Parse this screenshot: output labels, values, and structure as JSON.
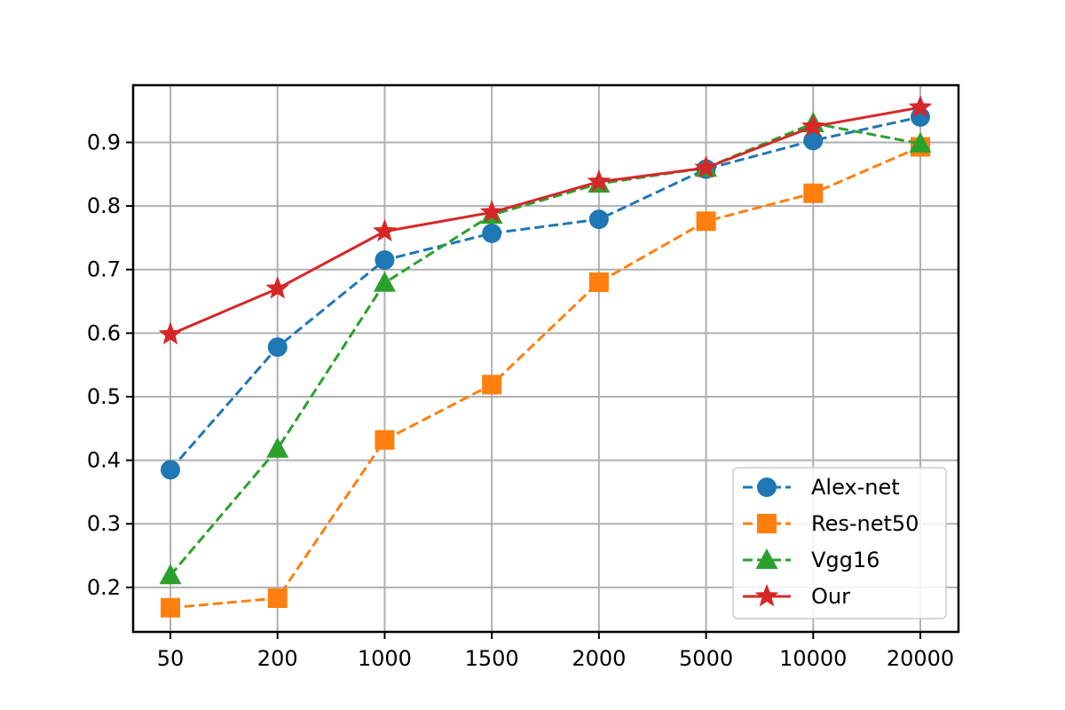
{
  "chart_data": {
    "type": "line",
    "title": "",
    "xlabel": "",
    "ylabel": "",
    "categories": [
      "50",
      "200",
      "1000",
      "1500",
      "2000",
      "5000",
      "10000",
      "20000"
    ],
    "ylim": [
      0.13,
      0.99
    ],
    "yticks": [
      "0.2",
      "0.3",
      "0.4",
      "0.5",
      "0.6",
      "0.7",
      "0.8",
      "0.9"
    ],
    "grid": true,
    "legend_position": "lower-right",
    "series": [
      {
        "name": "Alex-net",
        "color": "#1f77b4",
        "marker": "circle",
        "line_style": "dashed",
        "values": [
          0.385,
          0.578,
          0.715,
          0.757,
          0.779,
          0.858,
          0.903,
          0.94
        ]
      },
      {
        "name": "Res-net50",
        "color": "#ff7f0e",
        "marker": "square",
        "line_style": "dashed",
        "values": [
          0.168,
          0.183,
          0.432,
          0.519,
          0.68,
          0.776,
          0.82,
          0.893
        ]
      },
      {
        "name": "Vgg16",
        "color": "#2ca02c",
        "marker": "triangle",
        "line_style": "dashed",
        "values": [
          0.219,
          0.418,
          0.679,
          0.786,
          0.835,
          0.86,
          0.93,
          0.898
        ]
      },
      {
        "name": "Our",
        "color": "#d62728",
        "marker": "star",
        "line_style": "solid",
        "values": [
          0.598,
          0.67,
          0.76,
          0.79,
          0.838,
          0.86,
          0.925,
          0.955
        ]
      }
    ]
  }
}
